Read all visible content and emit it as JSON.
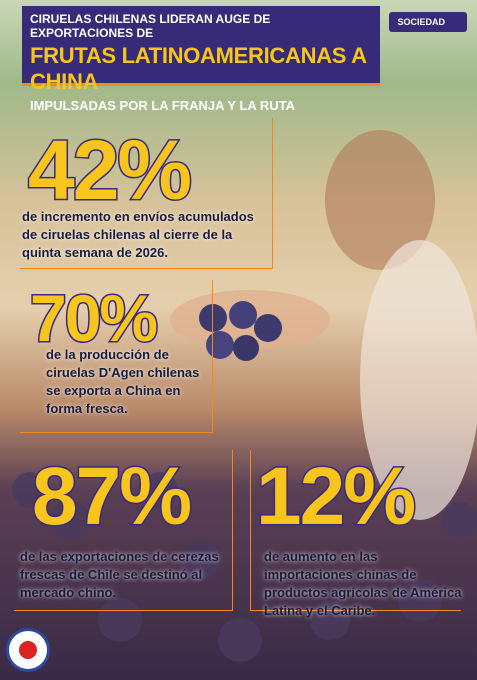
{
  "header": {
    "line1": "CIRUELAS CHILENAS LIDERAN AUGE DE EXPORTACIONES DE",
    "line2": "FRUTAS LATINOAMERICANAS A CHINA",
    "line3": "IMPULSADAS POR LA FRANJA Y LA RUTA"
  },
  "tag": "SOCIEDAD",
  "stats": [
    {
      "value": "42%",
      "text": "de incremento en envíos acumulados de ciruelas chilenas al cierre de la quinta semana de 2026."
    },
    {
      "value": "70%",
      "text": "de la producción de ciruelas D'Agen chilenas se exporta a China en forma fresca."
    },
    {
      "value": "87%",
      "text": "de las exportaciones de cerezas frescas de Chile se destinó al mercado chino."
    },
    {
      "value": "12%",
      "text": "de aumento en las importaciones chinas de productos agrícolas de América Latina y el Caribe."
    }
  ]
}
